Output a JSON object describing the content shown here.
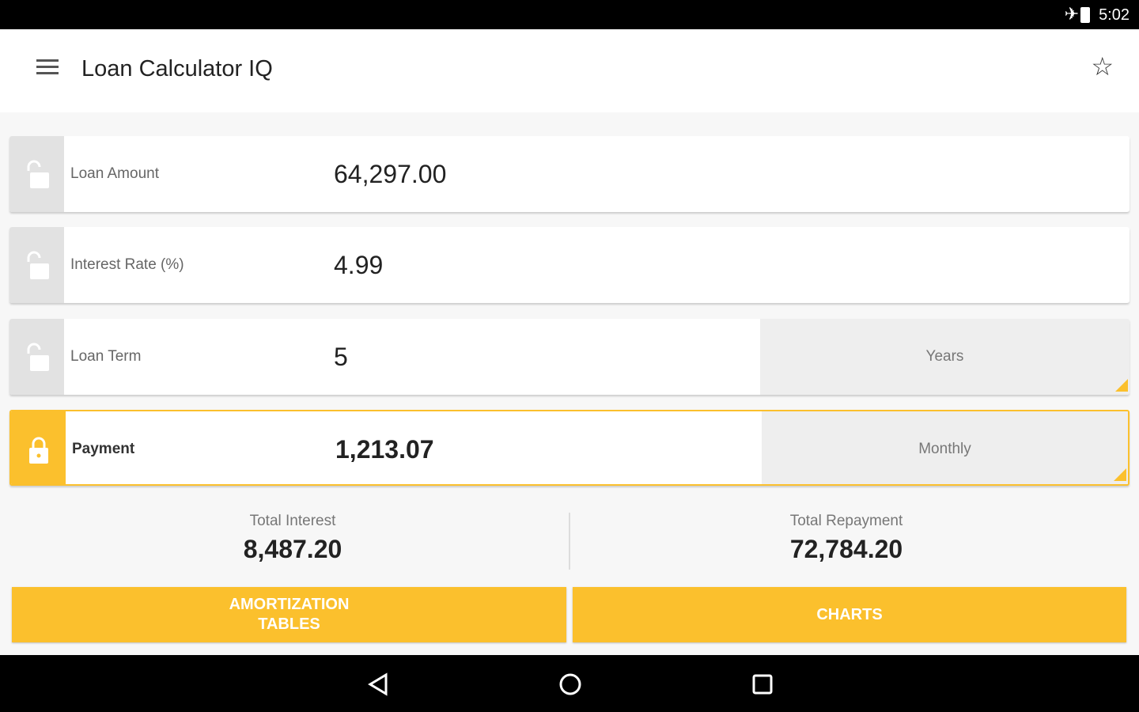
{
  "status_bar": {
    "time": "5:02",
    "icons": [
      "airplane-icon",
      "battery-icon"
    ]
  },
  "app_bar": {
    "title": "Loan Calculator IQ",
    "menu_icon": "hamburger-icon",
    "favorite_icon": "star-icon"
  },
  "fields": [
    {
      "label": "Loan Amount",
      "value": "64,297.00",
      "locked": false
    },
    {
      "label": "Interest Rate (%)",
      "value": "4.99",
      "locked": false
    },
    {
      "label": "Loan Term",
      "value": "5",
      "locked": false,
      "unit": "Years"
    },
    {
      "label": "Payment",
      "value": "1,213.07",
      "locked": true,
      "unit": "Monthly"
    }
  ],
  "summary": {
    "total_interest_label": "Total Interest",
    "total_interest": "8,487.20",
    "total_repayment_label": "Total Repayment",
    "total_repayment": "72,784.20"
  },
  "buttons": {
    "amortization": "AMORTIZATION\nTABLES",
    "charts": "CHARTS"
  },
  "colors": {
    "accent": "#fbc02d",
    "lock_inactive": "#e2e2e2"
  }
}
